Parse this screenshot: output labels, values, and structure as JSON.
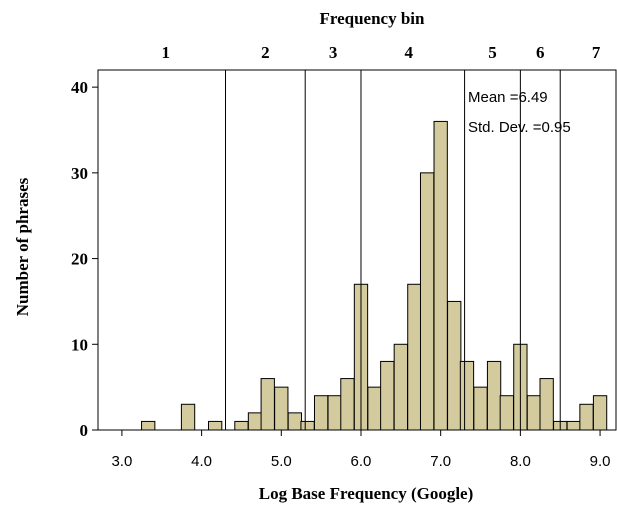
{
  "chart_data": {
    "type": "bar",
    "title": "Frequency bin",
    "xlabel": "Log Base Frequency (Google)",
    "ylabel": "Number of phrases",
    "xlim": [
      2.7,
      9.2
    ],
    "ylim": [
      0,
      42
    ],
    "x_ticks": [
      3.0,
      4.0,
      5.0,
      6.0,
      7.0,
      8.0,
      9.0
    ],
    "x_tick_labels": [
      "3.0",
      "4.0",
      "5.0",
      "6.0",
      "7.0",
      "8.0",
      "9.0"
    ],
    "y_ticks": [
      0,
      10,
      20,
      30,
      40
    ],
    "y_tick_labels": [
      "0",
      "10",
      "20",
      "30",
      "40"
    ],
    "bin_width": 0.167,
    "bins": [
      {
        "x": 3.33,
        "value": 1
      },
      {
        "x": 3.83,
        "value": 3
      },
      {
        "x": 4.17,
        "value": 1
      },
      {
        "x": 4.5,
        "value": 1
      },
      {
        "x": 4.67,
        "value": 2
      },
      {
        "x": 4.83,
        "value": 6
      },
      {
        "x": 5.0,
        "value": 5
      },
      {
        "x": 5.17,
        "value": 2
      },
      {
        "x": 5.33,
        "value": 1
      },
      {
        "x": 5.5,
        "value": 4
      },
      {
        "x": 5.67,
        "value": 4
      },
      {
        "x": 5.83,
        "value": 6
      },
      {
        "x": 6.0,
        "value": 17
      },
      {
        "x": 6.17,
        "value": 5
      },
      {
        "x": 6.33,
        "value": 8
      },
      {
        "x": 6.5,
        "value": 10
      },
      {
        "x": 6.67,
        "value": 17
      },
      {
        "x": 6.83,
        "value": 30
      },
      {
        "x": 7.0,
        "value": 36
      },
      {
        "x": 7.17,
        "value": 15
      },
      {
        "x": 7.33,
        "value": 8
      },
      {
        "x": 7.5,
        "value": 5
      },
      {
        "x": 7.67,
        "value": 8
      },
      {
        "x": 7.83,
        "value": 4
      },
      {
        "x": 8.0,
        "value": 10
      },
      {
        "x": 8.17,
        "value": 4
      },
      {
        "x": 8.33,
        "value": 6
      },
      {
        "x": 8.5,
        "value": 1
      },
      {
        "x": 8.67,
        "value": 1
      },
      {
        "x": 8.83,
        "value": 3
      },
      {
        "x": 9.0,
        "value": 4
      }
    ],
    "bin_boundaries": [
      4.3,
      5.3,
      6.0,
      7.3,
      8.0,
      8.5
    ],
    "bin_labels": [
      {
        "label": "1",
        "x": 3.55
      },
      {
        "label": "2",
        "x": 4.8
      },
      {
        "label": "3",
        "x": 5.65
      },
      {
        "label": "4",
        "x": 6.6
      },
      {
        "label": "5",
        "x": 7.65
      },
      {
        "label": "6",
        "x": 8.25
      },
      {
        "label": "7",
        "x": 8.95
      }
    ],
    "stats": {
      "mean_text": "Mean =6.49",
      "sd_text": "Std. Dev. =0.95"
    },
    "bar_fill": "#d3cb9d",
    "bar_stroke": "#000000",
    "grid": false
  }
}
